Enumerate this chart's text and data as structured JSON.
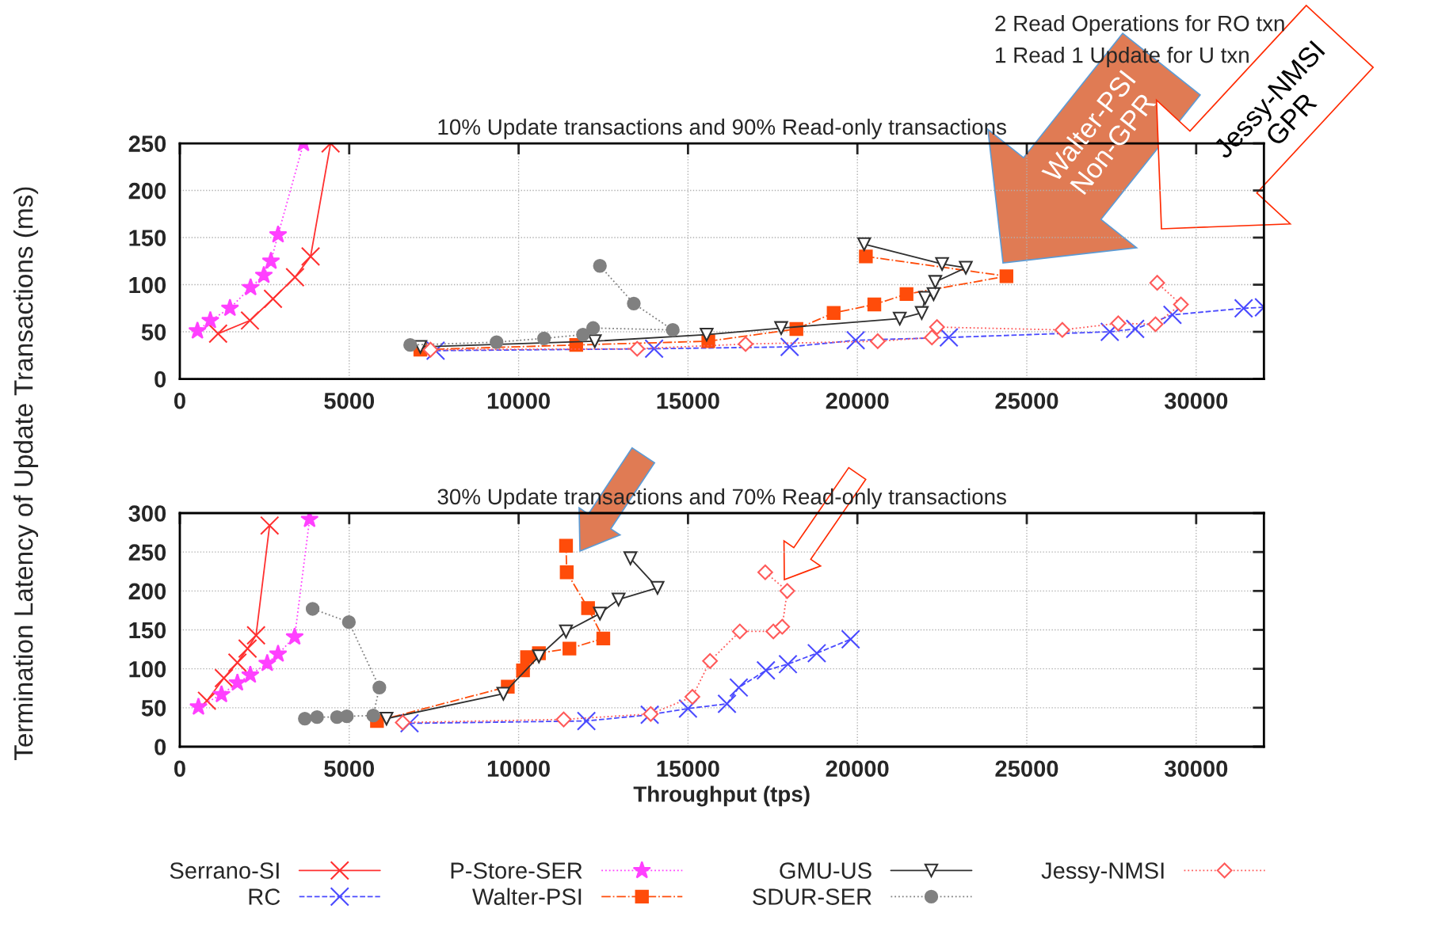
{
  "chart_data": [
    {
      "type": "line",
      "title": "10% Update transactions and 90% Read-only transactions",
      "ylabel": "Termination Latency of Update Transactions (ms)",
      "xlim": [
        0,
        32000
      ],
      "ylim": [
        0,
        250
      ],
      "xticks": [
        0,
        5000,
        10000,
        15000,
        20000,
        25000,
        30000
      ],
      "yticks": [
        0,
        50,
        100,
        150,
        200,
        250
      ],
      "grid": true,
      "annotations": [
        "2 Read Operations for RO txn",
        "1 Read 1 Update for U txn",
        "Walter-PSI\nNon-GPR",
        "Jessy-NMSI\nGPR"
      ],
      "series": [
        {
          "color": "#ff3030",
          "marker": "cross",
          "line_style": "solid",
          "x": [
            1130,
            2070,
            2750,
            3400,
            3860,
            4450
          ],
          "values": [
            48,
            62,
            85,
            108,
            130,
            250
          ]
        },
        {
          "color": "#4a4aff",
          "marker": "cross",
          "line_style": "dashed",
          "x": [
            7550,
            14000,
            18000,
            19950,
            22700,
            27450,
            28200,
            29300,
            31400,
            32000
          ],
          "values": [
            30,
            32,
            34,
            41,
            44,
            50,
            53,
            68,
            75,
            76
          ]
        },
        {
          "color": "#ff40ff",
          "marker": "star",
          "line_style": "dotted",
          "x": [
            520,
            900,
            1480,
            2090,
            2480,
            2690,
            2900,
            3650
          ],
          "values": [
            51,
            62,
            75,
            97,
            110,
            125,
            153,
            250
          ]
        },
        {
          "color": "#ff4c0a",
          "marker": "square",
          "line_style": "dashdot",
          "x": [
            7100,
            11700,
            15600,
            18200,
            19300,
            20500,
            21450,
            24400,
            20250
          ],
          "values": [
            31,
            36,
            40,
            53,
            70,
            79,
            90,
            109,
            130
          ]
        },
        {
          "color": "#303030",
          "marker": "triangle",
          "line_style": "solid",
          "x": [
            7100,
            12250,
            15550,
            17750,
            21250,
            21900,
            22000,
            22250,
            22300,
            23200,
            22500,
            20200
          ],
          "values": [
            34,
            40,
            47,
            54,
            64,
            70,
            86,
            90,
            103,
            118,
            122,
            143
          ]
        },
        {
          "color": "#808080",
          "marker": "circle",
          "line_style": "dotted",
          "x": [
            6800,
            9350,
            10750,
            11900,
            12200,
            14550,
            13400,
            12400
          ],
          "values": [
            36,
            39,
            43,
            47,
            54,
            52,
            80,
            120
          ]
        },
        {
          "color": "#ff5a5a",
          "marker": "diamond",
          "line_style": "dotted",
          "x": [
            7400,
            13500,
            16700,
            20600,
            22200,
            22350,
            26050,
            27700,
            28800,
            29550,
            28850
          ],
          "values": [
            31,
            32,
            37,
            40,
            44,
            55,
            52,
            59,
            58,
            79,
            102
          ]
        }
      ]
    },
    {
      "type": "line",
      "title": "30% Update transactions and 70% Read-only transactions",
      "xlabel": "Throughput (tps)",
      "xlim": [
        0,
        32000
      ],
      "ylim": [
        0,
        300
      ],
      "xticks": [
        0,
        5000,
        10000,
        15000,
        20000,
        25000,
        30000
      ],
      "yticks": [
        0,
        50,
        100,
        150,
        200,
        250,
        300
      ],
      "grid": true,
      "legend": "bottom",
      "series": [
        {
          "name": "Serrano-SI",
          "color": "#ff3030",
          "marker": "cross",
          "line_style": "solid",
          "x": [
            800,
            1300,
            1700,
            2000,
            2250,
            2650
          ],
          "values": [
            59,
            88,
            108,
            126,
            143,
            284
          ]
        },
        {
          "name": "RC",
          "color": "#4a4aff",
          "marker": "cross",
          "line_style": "dashed",
          "x": [
            6780,
            12000,
            13870,
            15000,
            16150,
            16500,
            17300,
            17950,
            18800,
            19800
          ],
          "values": [
            30,
            33,
            41,
            49,
            55,
            76,
            98,
            106,
            120,
            138
          ]
        },
        {
          "name": "P-Store-SER",
          "color": "#ff40ff",
          "marker": "star",
          "line_style": "dotted",
          "x": [
            550,
            1230,
            1700,
            2080,
            2580,
            2900,
            3390,
            3830
          ],
          "values": [
            51,
            67,
            82,
            92,
            107,
            119,
            141,
            292
          ]
        },
        {
          "name": "Walter-PSI",
          "color": "#ff4c0a",
          "marker": "square",
          "line_style": "dashdot",
          "x": [
            5820,
            9680,
            10130,
            10250,
            10600,
            11500,
            12500,
            12050,
            11420,
            11400
          ],
          "values": [
            33,
            77,
            98,
            115,
            120,
            126,
            139,
            178,
            224,
            258
          ]
        },
        {
          "name": "GMU-US",
          "color": "#303030",
          "marker": "triangle",
          "line_style": "solid",
          "x": [
            6100,
            9550,
            10600,
            11400,
            12400,
            12950,
            14100,
            13300
          ],
          "values": [
            36,
            68,
            116,
            148,
            171,
            189,
            204,
            242
          ]
        },
        {
          "name": "SDUR-SER",
          "color": "#808080",
          "marker": "circle",
          "line_style": "dotted",
          "x": [
            3690,
            4050,
            4640,
            4930,
            5710,
            5890,
            4990,
            3920
          ],
          "values": [
            36,
            38,
            38,
            39,
            40,
            76,
            160,
            177
          ]
        },
        {
          "name": "Jessy-NMSI",
          "color": "#ff5a5a",
          "marker": "diamond",
          "line_style": "dotted",
          "x": [
            6580,
            11330,
            13900,
            15130,
            15650,
            16530,
            17520,
            17780,
            17930,
            17280
          ],
          "values": [
            31,
            35,
            42,
            64,
            110,
            148,
            148,
            154,
            200,
            224
          ]
        }
      ]
    }
  ]
}
